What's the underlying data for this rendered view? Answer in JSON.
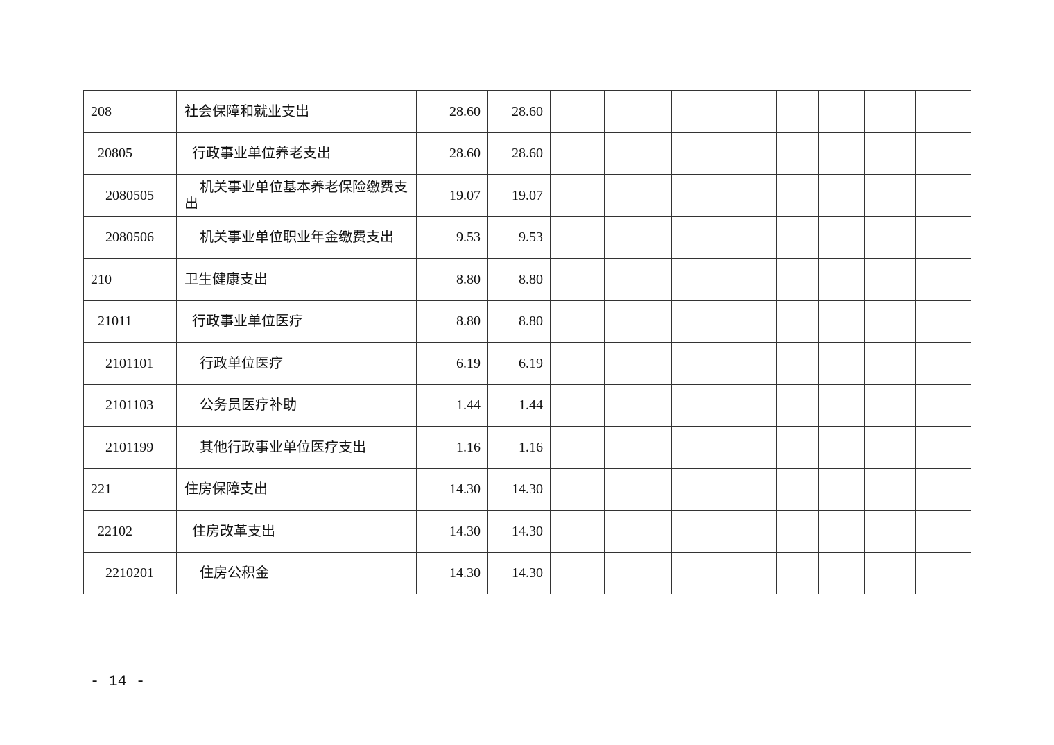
{
  "table": {
    "rows": [
      {
        "level": 0,
        "code": "208",
        "name": "社会保障和就业支出",
        "total": "28.60",
        "basic": "28.60"
      },
      {
        "level": 1,
        "code": "20805",
        "name": "行政事业单位养老支出",
        "total": "28.60",
        "basic": "28.60"
      },
      {
        "level": 2,
        "code": "2080505",
        "name": "机关事业单位基本养老保险缴费支出",
        "total": "19.07",
        "basic": "19.07"
      },
      {
        "level": 2,
        "code": "2080506",
        "name": "机关事业单位职业年金缴费支出",
        "total": "9.53",
        "basic": "9.53"
      },
      {
        "level": 0,
        "code": "210",
        "name": "卫生健康支出",
        "total": "8.80",
        "basic": "8.80"
      },
      {
        "level": 1,
        "code": "21011",
        "name": "行政事业单位医疗",
        "total": "8.80",
        "basic": "8.80"
      },
      {
        "level": 2,
        "code": "2101101",
        "name": "行政单位医疗",
        "total": "6.19",
        "basic": "6.19"
      },
      {
        "level": 2,
        "code": "2101103",
        "name": "公务员医疗补助",
        "total": "1.44",
        "basic": "1.44"
      },
      {
        "level": 2,
        "code": "2101199",
        "name": "其他行政事业单位医疗支出",
        "total": "1.16",
        "basic": "1.16"
      },
      {
        "level": 0,
        "code": "221",
        "name": "住房保障支出",
        "total": "14.30",
        "basic": "14.30"
      },
      {
        "level": 1,
        "code": "22102",
        "name": "住房改革支出",
        "total": "14.30",
        "basic": "14.30"
      },
      {
        "level": 2,
        "code": "2210201",
        "name": "住房公积金",
        "total": "14.30",
        "basic": "14.30"
      }
    ]
  },
  "footer": {
    "page_number": "- 14 -"
  }
}
